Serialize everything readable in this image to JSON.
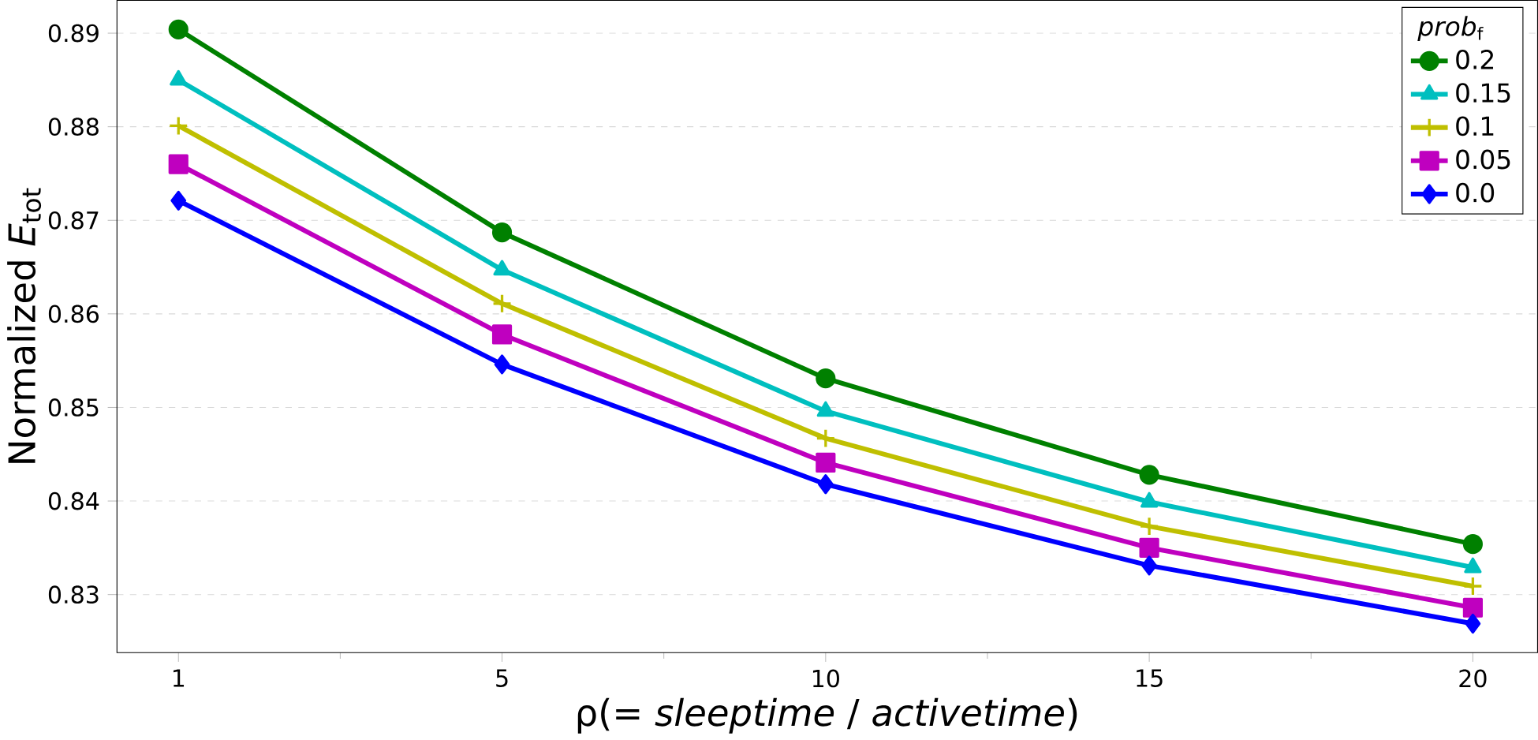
{
  "chart_data": {
    "type": "line",
    "xlabel": "ρ(= *sleeptime* / *activetime*)",
    "ylabel": "Normalized *E*$_{tot}$",
    "legend_title": "*prob*$_{f}$",
    "categories": [
      "1",
      "5",
      "10",
      "15",
      "20"
    ],
    "ylim": [
      0.8238,
      0.8935
    ],
    "yticks": [
      0.83,
      0.84,
      0.85,
      0.86,
      0.87,
      0.88,
      0.89
    ],
    "grid": "y",
    "legend": "top right",
    "line_style": "solid",
    "series": [
      {
        "name": "0.2",
        "color": "#008000",
        "marker": "circle",
        "values": [
          0.8904,
          0.8687,
          0.8531,
          0.8428,
          0.8354
        ]
      },
      {
        "name": "0.15",
        "color": "#00bfbf",
        "marker": "triangle",
        "values": [
          0.885,
          0.8647,
          0.8496,
          0.8399,
          0.8329
        ]
      },
      {
        "name": "0.1",
        "color": "#bfbf00",
        "marker": "cross",
        "values": [
          0.8801,
          0.8611,
          0.8467,
          0.8373,
          0.8309
        ]
      },
      {
        "name": "0.05",
        "color": "#bf00bf",
        "marker": "square",
        "values": [
          0.876,
          0.8578,
          0.8441,
          0.835,
          0.8286
        ]
      },
      {
        "name": "0.0",
        "color": "#0000ff",
        "marker": "diamond",
        "values": [
          0.8721,
          0.8546,
          0.8418,
          0.8331,
          0.8269
        ]
      }
    ]
  }
}
